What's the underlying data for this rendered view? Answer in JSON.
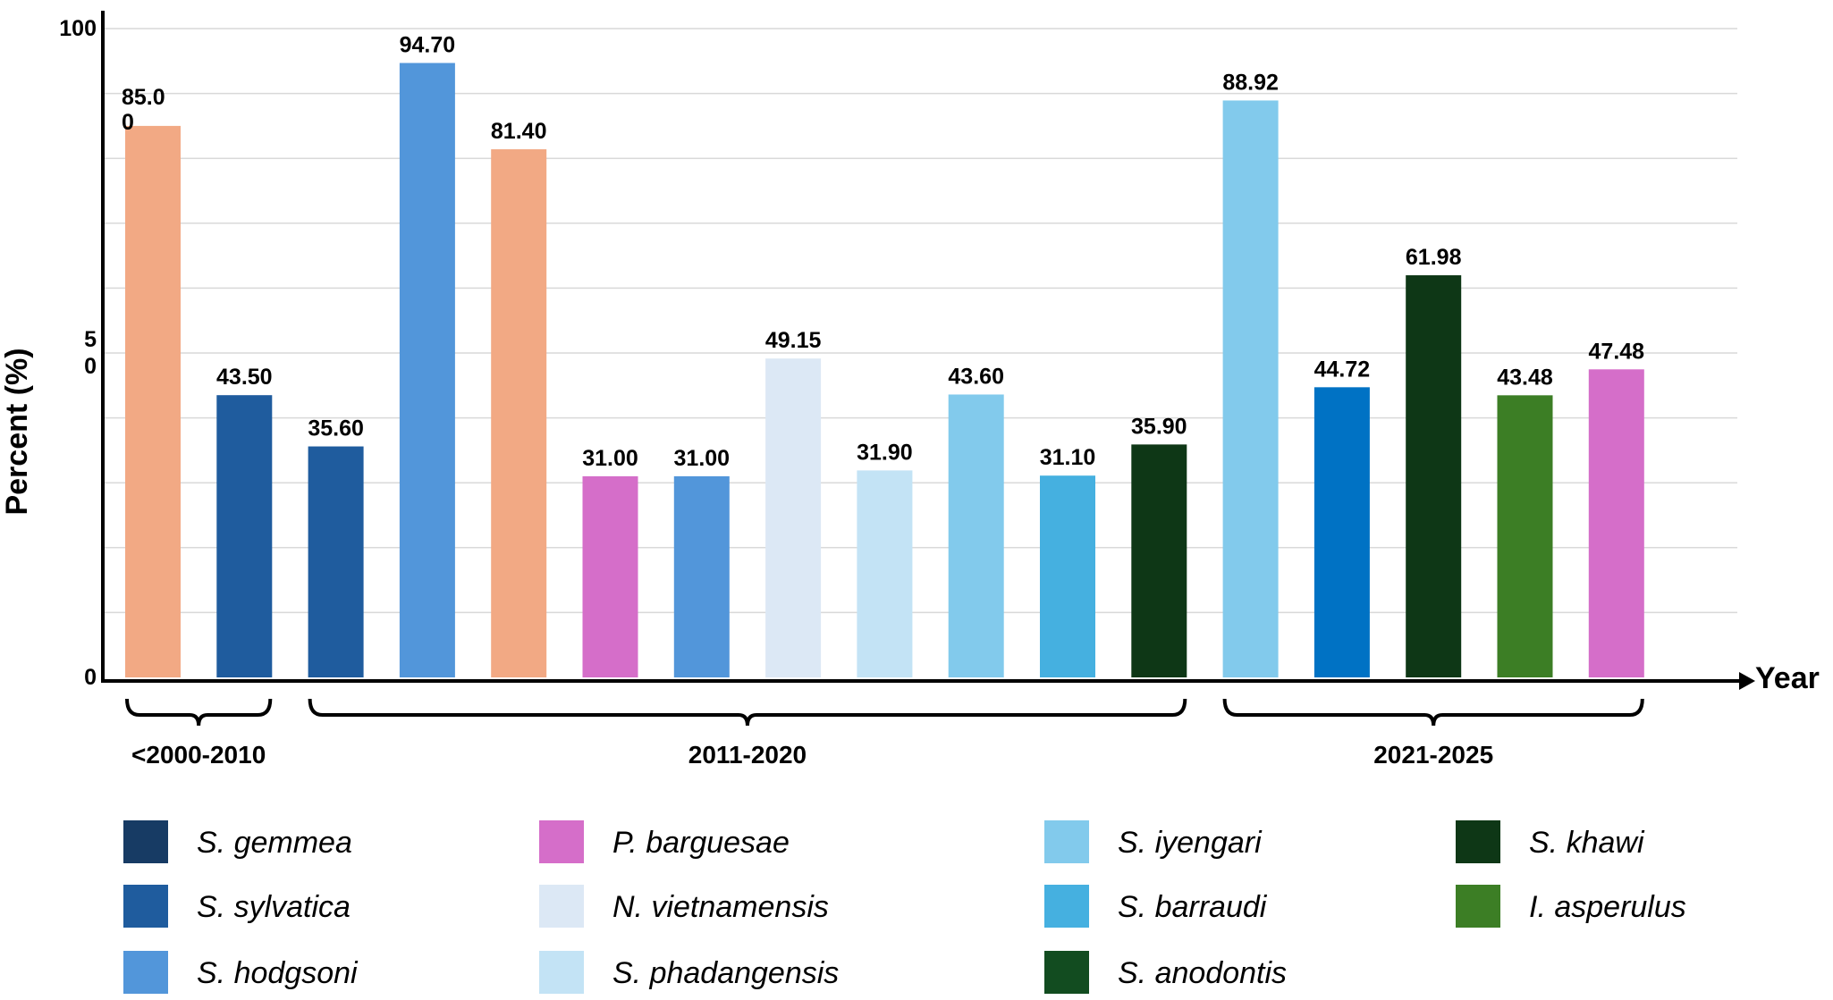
{
  "chart_data": {
    "type": "bar",
    "ylabel": "Percent (%)",
    "xlabel": "Year",
    "ylim": [
      0,
      100
    ],
    "y_tick_labels": [
      {
        "value": 0,
        "lines": [
          "0"
        ]
      },
      {
        "value": 50,
        "lines": [
          "5",
          "0"
        ]
      },
      {
        "value": 100,
        "lines": [
          "100"
        ]
      }
    ],
    "grid": true,
    "bars": [
      {
        "value": 85.0,
        "label_lines": [
          "85.0",
          "0"
        ],
        "species": "S. hodgsoni",
        "color": "#F2A984"
      },
      {
        "value": 43.5,
        "label_lines": [
          "43.50"
        ],
        "species": "S. sylvatica",
        "color": "#1F5C9E"
      },
      {
        "value": 35.6,
        "label_lines": [
          "35.60"
        ],
        "species": "S. sylvatica",
        "color": "#1F5C9E"
      },
      {
        "value": 94.7,
        "label_lines": [
          "94.70"
        ],
        "species": "S. hodgsoni",
        "color": "#5296DA"
      },
      {
        "value": 81.4,
        "label_lines": [
          "81.40"
        ],
        "species": "S. hodgsoni",
        "color": "#F2A984"
      },
      {
        "value": 31.0,
        "label_lines": [
          "31.00"
        ],
        "species": "P. barguesae",
        "color": "#D56EC9"
      },
      {
        "value": 31.0,
        "label_lines": [
          "31.00"
        ],
        "species": "S. hodgsoni",
        "color": "#5296DA"
      },
      {
        "value": 49.15,
        "label_lines": [
          "49.15"
        ],
        "species": "N. vietnamensis",
        "color": "#DCE8F5"
      },
      {
        "value": 31.9,
        "label_lines": [
          "31.90"
        ],
        "species": "S. phadangensis",
        "color": "#C3E3F5"
      },
      {
        "value": 43.6,
        "label_lines": [
          "43.60"
        ],
        "species": "S. iyengari",
        "color": "#82CAEC"
      },
      {
        "value": 31.1,
        "label_lines": [
          "31.10"
        ],
        "species": "S. barraudi",
        "color": "#45B0E0"
      },
      {
        "value": 35.9,
        "label_lines": [
          "35.90"
        ],
        "species": "S. khawi",
        "color": "#0E3716"
      },
      {
        "value": 88.92,
        "label_lines": [
          "88.92"
        ],
        "species": "S. iyengari",
        "color": "#82CAEC"
      },
      {
        "value": 44.72,
        "label_lines": [
          "44.72"
        ],
        "species": "S. barraudi",
        "color": "#0072C4"
      },
      {
        "value": 61.98,
        "label_lines": [
          "61.98"
        ],
        "species": "S. khawi",
        "color": "#0E3716"
      },
      {
        "value": 43.48,
        "label_lines": [
          "43.48"
        ],
        "species": "I. asperulus",
        "color": "#3C7E25"
      },
      {
        "value": 47.48,
        "label_lines": [
          "47.48"
        ],
        "species": "P. barguesae",
        "color": "#D56EC9"
      }
    ],
    "groups": [
      {
        "label": "<2000-2010",
        "from_bar": 0,
        "to_bar": 1
      },
      {
        "label": "2011-2020",
        "from_bar": 2,
        "to_bar": 11
      },
      {
        "label": "2021-2025",
        "from_bar": 12,
        "to_bar": 16
      }
    ],
    "legend": {
      "columns": [
        [
          {
            "label": "S. gemmea",
            "color": "#173B64"
          },
          {
            "label": "S. sylvatica",
            "color": "#1F5C9E"
          },
          {
            "label": "S. hodgsoni",
            "color": "#5296DA"
          }
        ],
        [
          {
            "label": "P. barguesae",
            "color": "#D56EC9"
          },
          {
            "label": "N. vietnamensis",
            "color": "#DCE8F5"
          },
          {
            "label": "S. phadangensis",
            "color": "#C3E3F5"
          }
        ],
        [
          {
            "label": "S. iyengari",
            "color": "#82CAEC"
          },
          {
            "label": "S. barraudi",
            "color": "#45B0E0"
          },
          {
            "label": "S. anodontis",
            "color": "#124C20"
          }
        ],
        [
          {
            "label": "S. khawi",
            "color": "#0E3716"
          },
          {
            "label": "I. asperulus",
            "color": "#3C7E25"
          }
        ]
      ]
    }
  }
}
